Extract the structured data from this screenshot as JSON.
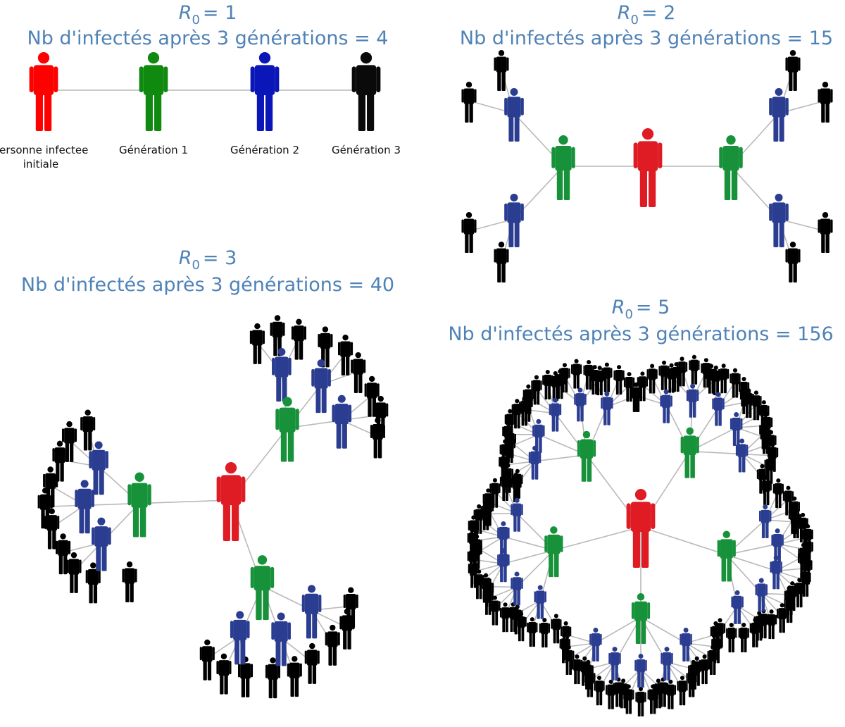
{
  "colors": {
    "title": "#4f82b7",
    "link": "#b9b9b9",
    "initial_r1": "#ff0000",
    "generation1_r1": "#0f8a0f",
    "generation2_r1": "#0b16b8",
    "generation3_r1": "#0a0a0a",
    "initial": "#df1b24",
    "generation1": "#17923a",
    "generation2": "#2a3d91",
    "generation3": "#000000"
  },
  "panels": [
    {
      "id": "r1",
      "r_symbol": "R",
      "r_subscript": "0",
      "r_value": "= 1",
      "count_line": "Nb d'infectés après 3 générations = 4",
      "labels": [
        "Personne infectee",
        "initiale",
        "Génération 1",
        "Génération 2",
        "Génération 3"
      ]
    },
    {
      "id": "r2",
      "r_symbol": "R",
      "r_subscript": "0",
      "r_value": "= 2",
      "count_line": "Nb d'infectés après 3 générations = 15"
    },
    {
      "id": "r3",
      "r_symbol": "R",
      "r_subscript": "0",
      "r_value": "= 3",
      "count_line": "Nb d'infectés après 3 générations = 40"
    },
    {
      "id": "r5",
      "r_symbol": "R",
      "r_subscript": "0",
      "r_value": "= 5",
      "count_line": "Nb d'infectés après 3 générations = 156"
    }
  ],
  "diagram_data": {
    "legend": [
      {
        "group": "initial",
        "label": "Personne infectee initiale"
      },
      {
        "group": "generation1",
        "label": "Génération 1"
      },
      {
        "group": "generation2",
        "label": "Génération 2"
      },
      {
        "group": "generation3",
        "label": "Génération 3"
      }
    ],
    "trees": [
      {
        "panel": "r1",
        "r0": 1,
        "generations": 3,
        "infected_total": 4
      },
      {
        "panel": "r2",
        "r0": 2,
        "generations": 3,
        "infected_total": 15
      },
      {
        "panel": "r3",
        "r0": 3,
        "generations": 3,
        "infected_total": 40
      },
      {
        "panel": "r5",
        "r0": 5,
        "generations": 3,
        "infected_total": 156
      }
    ]
  }
}
